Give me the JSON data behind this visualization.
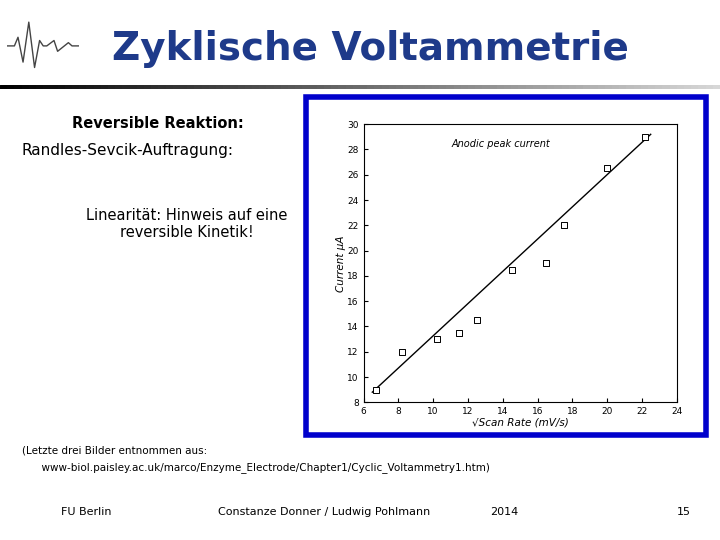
{
  "title": "Zyklische Voltammetrie",
  "title_color": "#1e3a8a",
  "title_fontsize": 28,
  "background_color": "#ffffff",
  "text_reversible": "Reversible Reaktion:",
  "text_randles": "Randles-Sevcik-Auftragung:",
  "text_linearitaet": "Linearität: Hinweis auf eine\nreversible Kinetik!",
  "plot_border_color": "#0000cc",
  "plot_border_lw": 3,
  "scatter_x": [
    6.7,
    8.2,
    10.2,
    11.5,
    12.5,
    14.5,
    16.5,
    17.5,
    20.0,
    22.2
  ],
  "scatter_y": [
    9.0,
    12.0,
    13.0,
    13.5,
    14.5,
    18.5,
    19.0,
    22.0,
    26.5,
    29.0
  ],
  "line_x": [
    6.5,
    22.5
  ],
  "line_y": [
    8.8,
    29.2
  ],
  "xlabel": "√Scan Rate (mV/s)",
  "ylabel": "Current µA",
  "plot_annotation": "Anodic peak current",
  "xlim": [
    6,
    24
  ],
  "ylim": [
    8,
    30
  ],
  "xticks": [
    6,
    8,
    10,
    12,
    14,
    16,
    18,
    20,
    22,
    24
  ],
  "yticks": [
    8,
    10,
    12,
    14,
    16,
    18,
    20,
    22,
    24,
    26,
    28,
    30
  ],
  "footer_text1": "(Letzte drei Bilder entnommen aus:",
  "footer_text2": "      www-biol.paisley.ac.uk/marco/Enzyme_Electrode/Chapter1/Cyclic_Voltammetry1.htm)",
  "footer_left": "FU Berlin",
  "footer_center": "Constanze Donner / Ludwig Pohlmann",
  "footer_year": "2014",
  "footer_page": "15"
}
